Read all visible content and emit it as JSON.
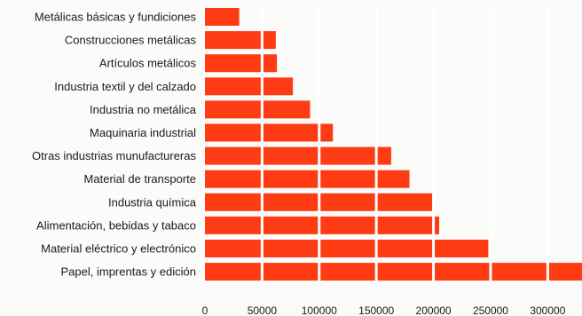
{
  "chart_data": {
    "type": "bar",
    "orientation": "horizontal",
    "bar_color": "#ff3b14",
    "categories": [
      "Metálicas básicas y fundiciones",
      "Construcciones metálicas",
      "Artículos metálicos",
      "Industria textil y del calzado",
      "Industria no metálica",
      "Maquinaria industrial",
      "Otras industrias munufactureras",
      "Material de transporte",
      "Industria química",
      "Alimentación, bebidas y tabaco",
      "Material eléctrico y electrónico",
      "Papel, imprentas y edición"
    ],
    "values": [
      30000,
      62000,
      63000,
      77000,
      92000,
      112000,
      163000,
      179000,
      200000,
      205000,
      248000,
      330000
    ],
    "x_ticks": [
      "0",
      "50000",
      "100000",
      "150000",
      "200000",
      "250000",
      "300000"
    ],
    "xlim": [
      0,
      330000
    ],
    "grid": "vertical white lines every 50000"
  }
}
